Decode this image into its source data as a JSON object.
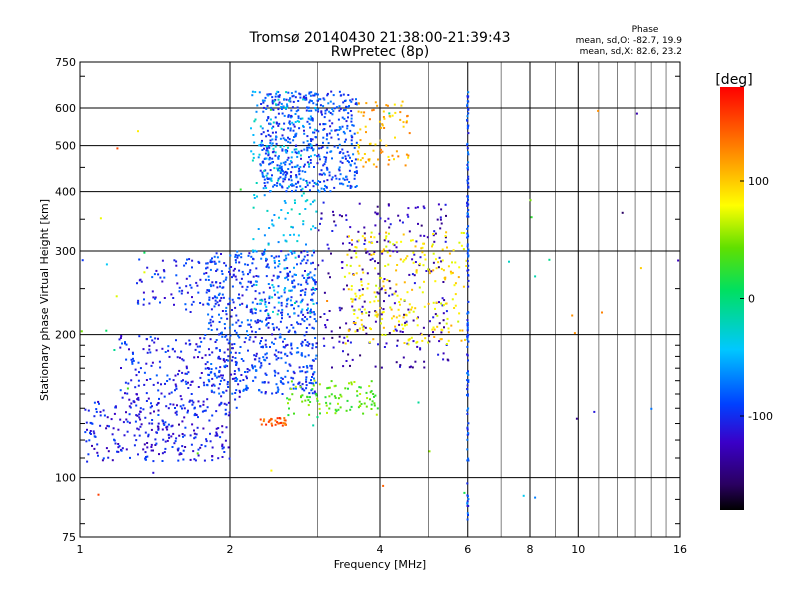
{
  "chart_data": {
    "type": "scatter",
    "title": "Tromsø 20140430 21:38:00-21:39:43",
    "subtitle": "RwPretec (8p)",
    "xlabel": "Frequency [MHz]",
    "ylabel": "Stationary phase Virtual Height [km]",
    "x_scale": "log",
    "y_scale": "log",
    "xlim": [
      1,
      16
    ],
    "ylim": [
      75,
      750
    ],
    "x_ticks": [
      1,
      2,
      4,
      6,
      8,
      10,
      16
    ],
    "x_tick_labels": [
      "1",
      "2",
      "4",
      "6",
      "8",
      "10",
      "16"
    ],
    "x_minor_gridlines": [
      3,
      5,
      7,
      9,
      11,
      12,
      13,
      14,
      15
    ],
    "y_ticks": [
      75,
      100,
      200,
      300,
      400,
      500,
      600,
      750
    ],
    "y_tick_labels": [
      "75",
      "100",
      "200",
      "300",
      "400",
      "500",
      "600",
      "750"
    ],
    "grid": true,
    "stats": {
      "heading": "Phase",
      "o_line": "mean, sd,O: -82.7, 19.9",
      "x_line": "mean, sd,X:  82.6, 23.2"
    },
    "colorbar": {
      "label": "[deg]",
      "range": [
        -180,
        180
      ],
      "ticks": [
        100,
        0,
        -100
      ],
      "tick_labels": [
        "100",
        "0",
        "-100"
      ],
      "colormap": "rainbow"
    },
    "clusters": [
      {
        "name": "lower trace",
        "f": [
          1.02,
          2.0
        ],
        "h": [
          108,
          145
        ],
        "phase": -110,
        "n": 260
      },
      {
        "name": "lower trace upper branch",
        "f": [
          1.2,
          2.1
        ],
        "h": [
          135,
          200
        ],
        "phase": -105,
        "n": 220
      },
      {
        "name": "oblique arc",
        "f": [
          1.3,
          2.0
        ],
        "h": [
          230,
          290
        ],
        "phase": -100,
        "n": 90
      },
      {
        "name": "F region main",
        "f": [
          1.8,
          3.0
        ],
        "h": [
          150,
          300
        ],
        "phase": -95,
        "n": 650
      },
      {
        "name": "F region upper",
        "f": [
          2.3,
          3.6
        ],
        "h": [
          400,
          650
        ],
        "phase": -90,
        "n": 550
      },
      {
        "name": "F region cyan",
        "f": [
          2.2,
          3.0
        ],
        "h": [
          220,
          650
        ],
        "phase": -45,
        "n": 220
      },
      {
        "name": "E spread violet",
        "f": [
          3.0,
          5.5
        ],
        "h": [
          170,
          380
        ],
        "phase": -130,
        "n": 260
      },
      {
        "name": "X trace upper",
        "f": [
          3.6,
          4.6
        ],
        "h": [
          450,
          620
        ],
        "phase": 110,
        "n": 80
      },
      {
        "name": "X trace mid",
        "f": [
          3.4,
          6.0
        ],
        "h": [
          190,
          330
        ],
        "phase": 90,
        "n": 260
      },
      {
        "name": "low green",
        "f": [
          2.6,
          4.0
        ],
        "h": [
          135,
          160
        ],
        "phase": 40,
        "n": 100
      },
      {
        "name": "orange patch",
        "f": [
          2.3,
          2.6
        ],
        "h": [
          128,
          134
        ],
        "phase": 150,
        "n": 30
      },
      {
        "name": "vertical streak 6 MHz",
        "f": [
          5.98,
          6.02
        ],
        "h": [
          80,
          650
        ],
        "phase": -90,
        "n": 140
      },
      {
        "name": "sparse outliers",
        "f": [
          1.0,
          16.0
        ],
        "h": [
          90,
          620
        ],
        "phase": 0,
        "n": 50
      }
    ]
  }
}
